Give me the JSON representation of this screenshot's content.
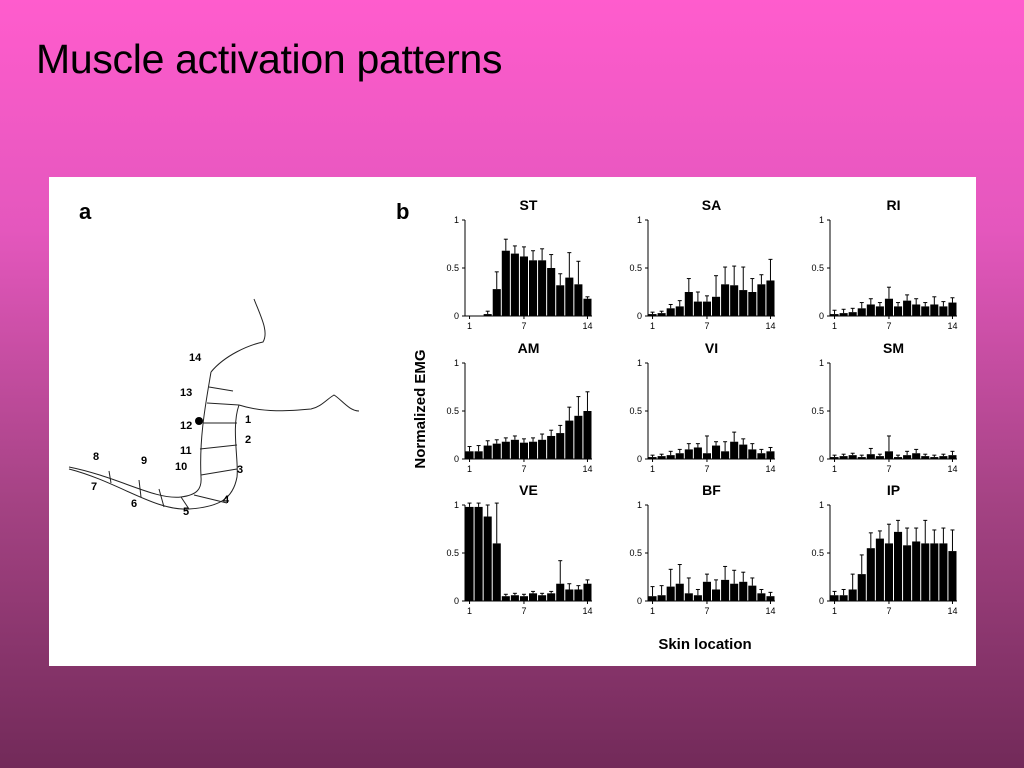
{
  "slide": {
    "title": "Muscle activation patterns"
  },
  "figure": {
    "panel_a_label": "a",
    "panel_b_label": "b",
    "skin_sites": [
      "1",
      "2",
      "3",
      "4",
      "5",
      "6",
      "7",
      "8",
      "9",
      "10",
      "11",
      "12",
      "13",
      "14"
    ],
    "ylabel": "Normalized EMG",
    "xlabel": "Skin location",
    "colors": {
      "bar": "#000000",
      "background": "#ffffff"
    }
  },
  "chart_data": [
    {
      "type": "bar",
      "title": "ST",
      "categories": [
        "1",
        "2",
        "3",
        "4",
        "5",
        "6",
        "7",
        "8",
        "9",
        "10",
        "11",
        "12",
        "13",
        "14"
      ],
      "values": [
        0,
        0,
        0.02,
        0.28,
        0.68,
        0.65,
        0.62,
        0.58,
        0.58,
        0.5,
        0.32,
        0.4,
        0.33,
        0.18
      ],
      "errors": [
        0,
        0,
        0.03,
        0.18,
        0.12,
        0.08,
        0.1,
        0.1,
        0.12,
        0.14,
        0.12,
        0.26,
        0.24,
        0.02
      ],
      "ylim": [
        0,
        1
      ],
      "yticks": [
        "0",
        "0.5",
        "1"
      ],
      "xticks": [
        "1",
        "7",
        "14"
      ]
    },
    {
      "type": "bar",
      "title": "SA",
      "categories": [
        "1",
        "2",
        "3",
        "4",
        "5",
        "6",
        "7",
        "8",
        "9",
        "10",
        "11",
        "12",
        "13",
        "14"
      ],
      "values": [
        0.02,
        0.03,
        0.08,
        0.1,
        0.25,
        0.15,
        0.15,
        0.2,
        0.33,
        0.32,
        0.27,
        0.25,
        0.33,
        0.37
      ],
      "errors": [
        0.02,
        0.02,
        0.04,
        0.06,
        0.14,
        0.1,
        0.06,
        0.22,
        0.18,
        0.2,
        0.24,
        0.14,
        0.1,
        0.22
      ],
      "ylim": [
        0,
        1
      ],
      "yticks": [
        "0",
        "0.5",
        "1"
      ],
      "xticks": [
        "1",
        "7",
        "14"
      ]
    },
    {
      "type": "bar",
      "title": "RI",
      "categories": [
        "1",
        "2",
        "3",
        "4",
        "5",
        "6",
        "7",
        "8",
        "9",
        "10",
        "11",
        "12",
        "13",
        "14"
      ],
      "values": [
        0.02,
        0.03,
        0.04,
        0.08,
        0.12,
        0.1,
        0.18,
        0.1,
        0.16,
        0.12,
        0.1,
        0.12,
        0.1,
        0.14
      ],
      "errors": [
        0.04,
        0.04,
        0.04,
        0.06,
        0.06,
        0.04,
        0.12,
        0.04,
        0.06,
        0.06,
        0.04,
        0.08,
        0.05,
        0.05
      ],
      "ylim": [
        0,
        1
      ],
      "yticks": [
        "0",
        "0.5",
        "1"
      ],
      "xticks": [
        "1",
        "7",
        "14"
      ]
    },
    {
      "type": "bar",
      "title": "AM",
      "categories": [
        "1",
        "2",
        "3",
        "4",
        "5",
        "6",
        "7",
        "8",
        "9",
        "10",
        "11",
        "12",
        "13",
        "14"
      ],
      "values": [
        0.08,
        0.08,
        0.14,
        0.16,
        0.18,
        0.2,
        0.17,
        0.18,
        0.2,
        0.24,
        0.27,
        0.4,
        0.45,
        0.5
      ],
      "errors": [
        0.05,
        0.06,
        0.05,
        0.04,
        0.04,
        0.04,
        0.04,
        0.04,
        0.06,
        0.06,
        0.08,
        0.14,
        0.2,
        0.2
      ],
      "ylim": [
        0,
        1
      ],
      "yticks": [
        "0",
        "0.5",
        "1"
      ],
      "xticks": [
        "1",
        "7",
        "14"
      ]
    },
    {
      "type": "bar",
      "title": "VI",
      "categories": [
        "1",
        "2",
        "3",
        "4",
        "5",
        "6",
        "7",
        "8",
        "9",
        "10",
        "11",
        "12",
        "13",
        "14"
      ],
      "values": [
        0.02,
        0.03,
        0.04,
        0.06,
        0.1,
        0.12,
        0.06,
        0.14,
        0.08,
        0.18,
        0.15,
        0.1,
        0.06,
        0.08
      ],
      "errors": [
        0.02,
        0.02,
        0.04,
        0.04,
        0.06,
        0.04,
        0.18,
        0.04,
        0.1,
        0.1,
        0.06,
        0.06,
        0.04,
        0.04
      ],
      "ylim": [
        0,
        1
      ],
      "yticks": [
        "0",
        "0.5",
        "1"
      ],
      "xticks": [
        "1",
        "7",
        "14"
      ]
    },
    {
      "type": "bar",
      "title": "SM",
      "categories": [
        "1",
        "2",
        "3",
        "4",
        "5",
        "6",
        "7",
        "8",
        "9",
        "10",
        "11",
        "12",
        "13",
        "14"
      ],
      "values": [
        0.02,
        0.03,
        0.04,
        0.02,
        0.05,
        0.03,
        0.08,
        0.02,
        0.04,
        0.06,
        0.03,
        0.02,
        0.03,
        0.04
      ],
      "errors": [
        0.02,
        0.02,
        0.02,
        0.02,
        0.06,
        0.02,
        0.16,
        0.02,
        0.04,
        0.04,
        0.02,
        0.02,
        0.02,
        0.04
      ],
      "ylim": [
        0,
        1
      ],
      "yticks": [
        "0",
        "0.5",
        "1"
      ],
      "xticks": [
        "1",
        "7",
        "14"
      ]
    },
    {
      "type": "bar",
      "title": "VE",
      "categories": [
        "1",
        "2",
        "3",
        "4",
        "5",
        "6",
        "7",
        "8",
        "9",
        "10",
        "11",
        "12",
        "13",
        "14"
      ],
      "values": [
        0.98,
        0.98,
        0.88,
        0.6,
        0.05,
        0.06,
        0.05,
        0.08,
        0.06,
        0.08,
        0.18,
        0.12,
        0.12,
        0.18
      ],
      "errors": [
        0.04,
        0.04,
        0.12,
        0.42,
        0.02,
        0.02,
        0.02,
        0.02,
        0.02,
        0.02,
        0.24,
        0.06,
        0.04,
        0.04
      ],
      "ylim": [
        0,
        1
      ],
      "yticks": [
        "0",
        "0.5",
        "1"
      ],
      "xticks": [
        "1",
        "7",
        "14"
      ]
    },
    {
      "type": "bar",
      "title": "BF",
      "categories": [
        "1",
        "2",
        "3",
        "4",
        "5",
        "6",
        "7",
        "8",
        "9",
        "10",
        "11",
        "12",
        "13",
        "14"
      ],
      "values": [
        0.05,
        0.06,
        0.15,
        0.18,
        0.08,
        0.06,
        0.2,
        0.12,
        0.22,
        0.18,
        0.2,
        0.16,
        0.08,
        0.05
      ],
      "errors": [
        0.1,
        0.1,
        0.18,
        0.2,
        0.16,
        0.06,
        0.08,
        0.1,
        0.14,
        0.14,
        0.1,
        0.08,
        0.04,
        0.04
      ],
      "ylim": [
        0,
        1
      ],
      "yticks": [
        "0",
        "0.5",
        "1"
      ],
      "xticks": [
        "1",
        "7",
        "14"
      ]
    },
    {
      "type": "bar",
      "title": "IP",
      "categories": [
        "1",
        "2",
        "3",
        "4",
        "5",
        "6",
        "7",
        "8",
        "9",
        "10",
        "11",
        "12",
        "13",
        "14"
      ],
      "values": [
        0.06,
        0.06,
        0.12,
        0.28,
        0.55,
        0.65,
        0.6,
        0.72,
        0.58,
        0.62,
        0.6,
        0.6,
        0.6,
        0.52
      ],
      "errors": [
        0.04,
        0.06,
        0.16,
        0.2,
        0.16,
        0.08,
        0.2,
        0.12,
        0.18,
        0.14,
        0.24,
        0.14,
        0.16,
        0.22
      ],
      "ylim": [
        0,
        1
      ],
      "yticks": [
        "0",
        "0.5",
        "1"
      ],
      "xticks": [
        "1",
        "7",
        "14"
      ]
    }
  ]
}
